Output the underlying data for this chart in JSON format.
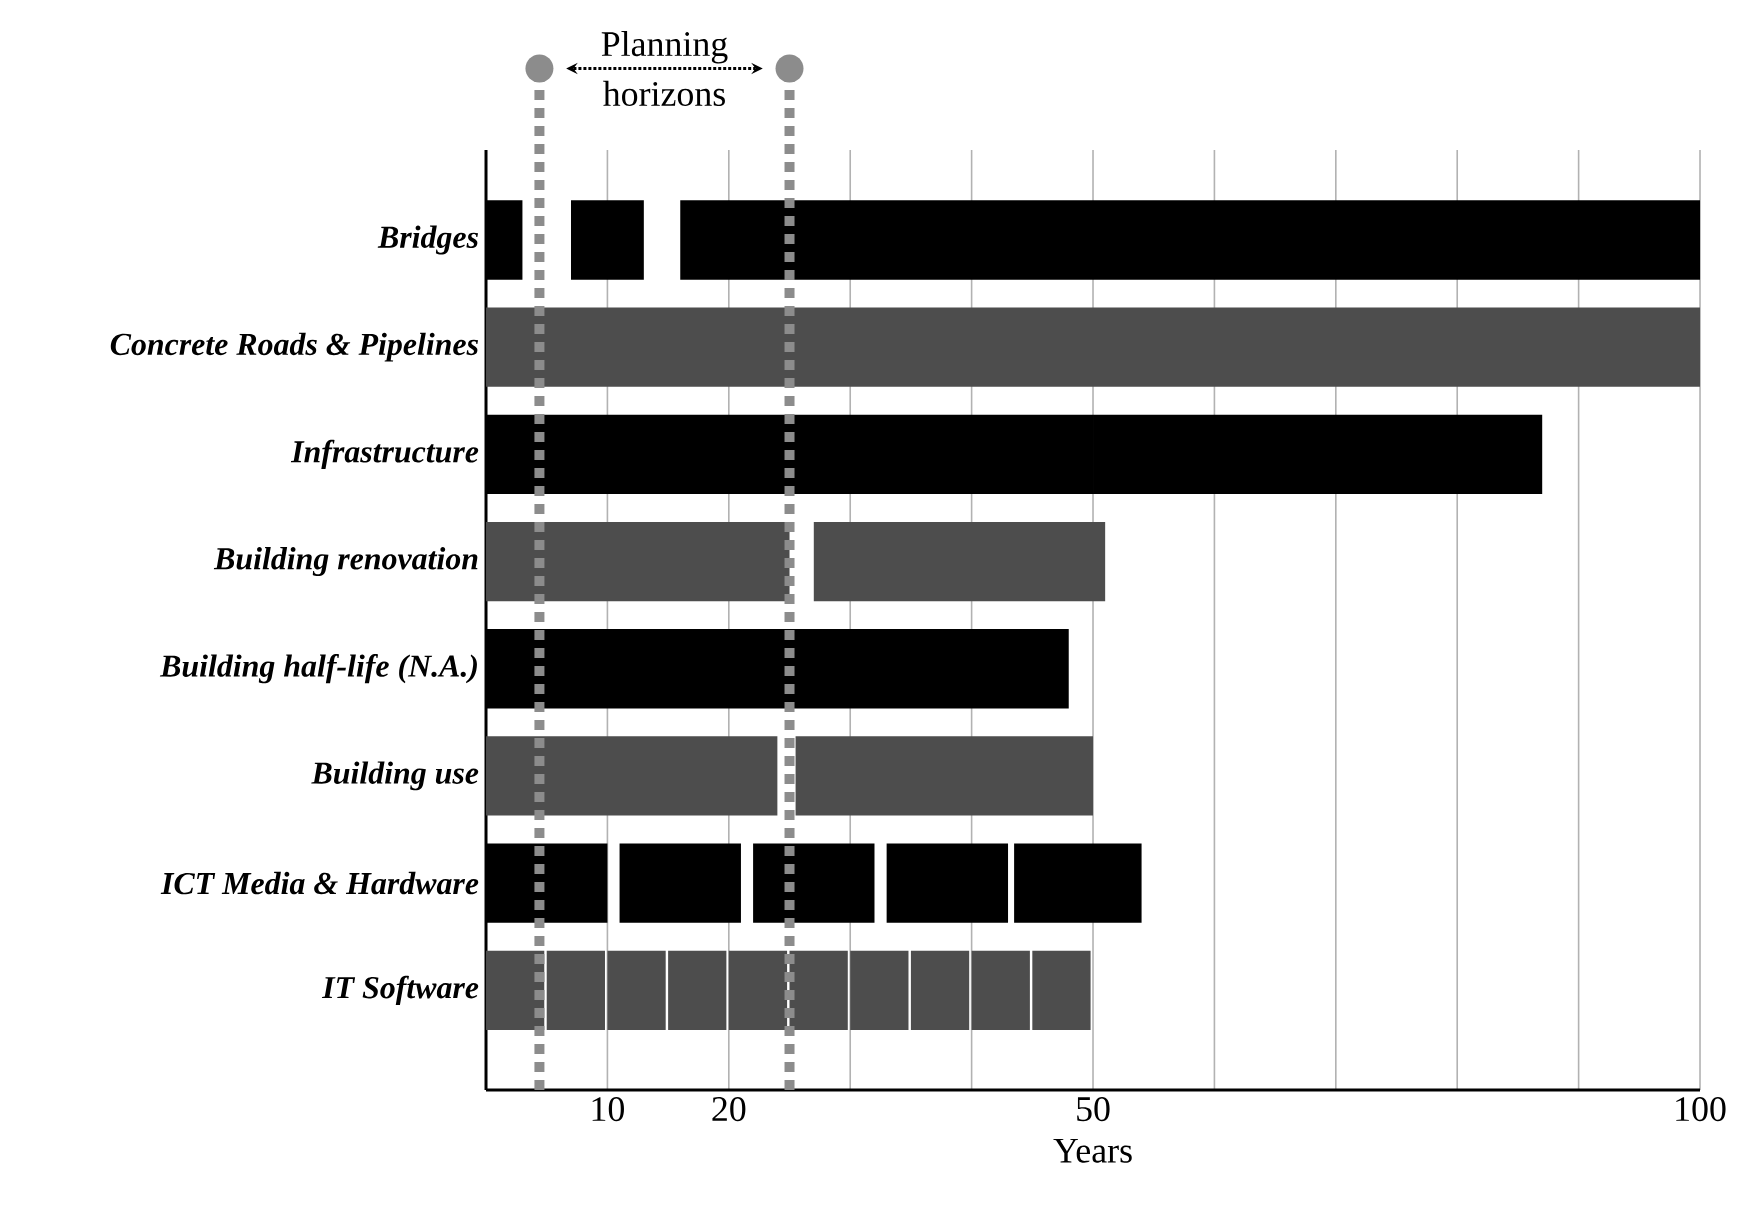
{
  "chart_data": {
    "type": "bar",
    "orientation": "horizontal",
    "xlabel": "Years",
    "categories": [
      "Bridges",
      "Concrete Roads & Pipelines",
      "Infrastructure",
      "Building renovation",
      "Building half-life (N.A.)",
      "Building use",
      "ICT Media &  Hardware",
      "IT Software"
    ],
    "xlim": [
      0,
      100
    ],
    "xticks": [
      10,
      20,
      {
        "value": 30,
        "label": null
      },
      {
        "value": 40,
        "label": null
      },
      50,
      {
        "value": 60,
        "label": null
      },
      {
        "value": 70,
        "label": null
      },
      {
        "value": 80,
        "label": null
      },
      {
        "value": 90,
        "label": null
      },
      100
    ],
    "grid": "x",
    "series": [
      {
        "base": [
          0,
          0,
          0,
          0,
          0,
          0,
          0,
          0
        ],
        "values": [
          3,
          100,
          50,
          25,
          48,
          24,
          10,
          4.8
        ],
        "colors": [
          "#000000",
          "#4d4d4d",
          "#000000",
          "#4d4d4d",
          "#000000",
          "#4d4d4d",
          "#000000",
          "#4d4d4d"
        ]
      },
      {
        "base": [
          7,
          null,
          50,
          27,
          null,
          25.5,
          11,
          5
        ],
        "values": [
          6,
          null,
          37,
          24,
          null,
          24.5,
          10,
          4.8
        ],
        "colors": [
          "#000000",
          "#4d4d4d",
          "#000000",
          "#4d4d4d",
          "#000000",
          "#4d4d4d",
          "#000000",
          "#4d4d4d"
        ]
      },
      {
        "base": [
          16,
          null,
          null,
          null,
          null,
          null,
          22,
          10
        ],
        "values": [
          84,
          null,
          null,
          null,
          null,
          null,
          10,
          4.8
        ],
        "colors": [
          "#000000",
          "#4d4d4d",
          "#000000",
          "#4d4d4d",
          "#000000",
          "#4d4d4d",
          "#000000",
          "#4d4d4d"
        ]
      },
      {
        "base": [
          null,
          null,
          null,
          null,
          null,
          null,
          33,
          15
        ],
        "values": [
          null,
          null,
          null,
          null,
          null,
          null,
          10,
          4.8
        ],
        "colors": [
          "#000000",
          "#4d4d4d",
          "#000000",
          "#4d4d4d",
          "#000000",
          "#4d4d4d",
          "#000000",
          "#4d4d4d"
        ]
      },
      {
        "base": [
          null,
          null,
          null,
          null,
          null,
          null,
          43.5,
          20
        ],
        "values": [
          null,
          null,
          null,
          null,
          null,
          null,
          10.5,
          4.8
        ],
        "colors": [
          "#000000",
          "#4d4d4d",
          "#000000",
          "#4d4d4d",
          "#000000",
          "#4d4d4d",
          "#000000",
          "#4d4d4d"
        ]
      },
      {
        "base": [
          null,
          null,
          null,
          null,
          null,
          null,
          null,
          25
        ],
        "values": [
          null,
          null,
          null,
          null,
          null,
          null,
          null,
          4.8
        ],
        "colors": [
          "#000000",
          "#4d4d4d",
          "#000000",
          "#4d4d4d",
          "#000000",
          "#4d4d4d",
          "#000000",
          "#4d4d4d"
        ]
      },
      {
        "base": [
          null,
          null,
          null,
          null,
          null,
          null,
          null,
          30
        ],
        "values": [
          null,
          null,
          null,
          null,
          null,
          null,
          null,
          4.8
        ],
        "colors": [
          "#000000",
          "#4d4d4d",
          "#000000",
          "#4d4d4d",
          "#000000",
          "#4d4d4d",
          "#000000",
          "#4d4d4d"
        ]
      },
      {
        "base": [
          null,
          null,
          null,
          null,
          null,
          null,
          null,
          35
        ],
        "values": [
          null,
          null,
          null,
          null,
          null,
          null,
          null,
          4.8
        ],
        "colors": [
          "#000000",
          "#4d4d4d",
          "#000000",
          "#4d4d4d",
          "#000000",
          "#4d4d4d",
          "#000000",
          "#4d4d4d"
        ]
      },
      {
        "base": [
          null,
          null,
          null,
          null,
          null,
          null,
          null,
          40
        ],
        "values": [
          null,
          null,
          null,
          null,
          null,
          null,
          null,
          4.8
        ],
        "colors": [
          "#000000",
          "#4d4d4d",
          "#000000",
          "#4d4d4d",
          "#000000",
          "#4d4d4d",
          "#000000",
          "#4d4d4d"
        ]
      },
      {
        "base": [
          null,
          null,
          null,
          null,
          null,
          null,
          null,
          45
        ],
        "values": [
          null,
          null,
          null,
          null,
          null,
          null,
          null,
          4.8
        ],
        "colors": [
          "#000000",
          "#4d4d4d",
          "#000000",
          "#4d4d4d",
          "#000000",
          "#4d4d4d",
          "#000000",
          "#4d4d4d"
        ]
      }
    ],
    "ref_lines": [
      {
        "axis": "x",
        "value": 4.4,
        "color": "#8c8c8c",
        "line_style": "dotted"
      },
      {
        "axis": "x",
        "value": 25,
        "color": "#8c8c8c",
        "line_style": "dotted"
      }
    ],
    "annotations": [
      "Planning horizons"
    ]
  }
}
